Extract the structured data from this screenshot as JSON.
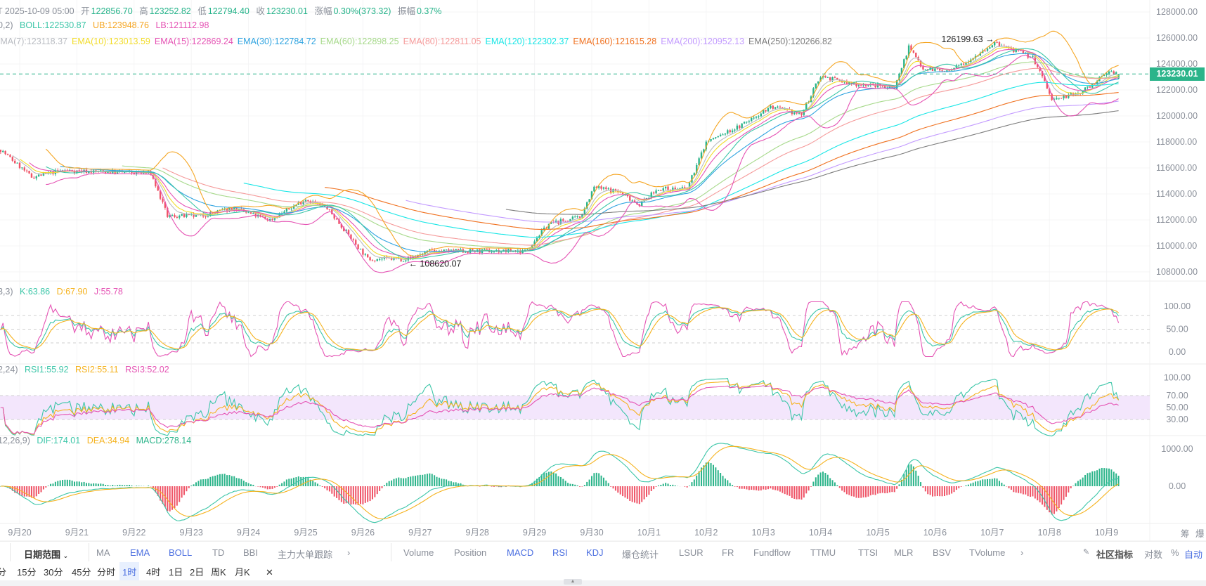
{
  "header": {
    "row1": {
      "prefix": "T 2025-10-09 05:00",
      "open_label": "开",
      "open": "122856.70",
      "high_label": "高",
      "high": "123252.82",
      "low_label": "低",
      "low": "122794.40",
      "close_label": "收",
      "close": "123230.01",
      "change_label": "涨幅",
      "change": "0.30%(373.32)",
      "amp_label": "振幅",
      "amp": "0.37%"
    },
    "boll": {
      "prefix": "0,2)",
      "mid": "BOLL:122530.87",
      "ub": "UB:123948.76",
      "lb": "LB:121112.98"
    },
    "ema": [
      {
        "text": "EMA(7):123118.37",
        "color": "#b9bcc2"
      },
      {
        "text": "EMA(10):123013.59",
        "color": "#f2dc2a"
      },
      {
        "text": "EMA(15):122869.24",
        "color": "#e553b4"
      },
      {
        "text": "EMA(30):122784.72",
        "color": "#2ea3e0"
      },
      {
        "text": "EMA(60):122898.25",
        "color": "#a6d98a"
      },
      {
        "text": "EMA(80):122811.05",
        "color": "#f59a9a"
      },
      {
        "text": "EMA(120):122302.37",
        "color": "#18e6e6"
      },
      {
        "text": "EMA(160):121615.28",
        "color": "#f0701e"
      },
      {
        "text": "EMA(200):120952.13",
        "color": "#c39bff"
      },
      {
        "text": "EMA(250):120266.82",
        "color": "#7d7d7d"
      }
    ],
    "kdj": {
      "prefix": "3,3)",
      "k": "K:63.86",
      "d": "D:67.90",
      "j": "J:55.78"
    },
    "rsi": {
      "prefix": "2,24)",
      "r1": "RSI1:55.92",
      "r2": "RSI2:55.11",
      "r3": "RSI3:52.02"
    },
    "macd": {
      "prefix": "12,26,9)",
      "dif": "DIF:174.01",
      "dea": "DEA:34.94",
      "macd": "MACD:278.14"
    }
  },
  "colors": {
    "up": "#2bb48a",
    "down": "#ef5467",
    "boll_mid": "#3cc6a8",
    "boll_ub": "#f5a623",
    "boll_lb": "#e553b4",
    "k": "#3cc6a8",
    "d": "#f5b21d",
    "j": "#e553b4",
    "rsi_band": "#f3e6fc"
  },
  "last_price": "123230.01",
  "annotations": {
    "high": "126199.63",
    "low": "108620.07"
  },
  "side_labels": {
    "chip": "筹",
    "liq": "爆"
  },
  "toolbar": {
    "date_range": "日期范围",
    "main_indicators": [
      "MA",
      "EMA",
      "BOLL",
      "TD",
      "BBI",
      "主力大单跟踪"
    ],
    "sub_indicators": [
      "Volume",
      "Position",
      "MACD",
      "RSI",
      "KDJ",
      "爆仓统计",
      "LSUR",
      "FR",
      "Fundflow",
      "TTMU",
      "TTSI",
      "MLR",
      "BSV",
      "TVolume"
    ],
    "community": "社区指标",
    "log": "对数",
    "percent": "%",
    "auto": "自动"
  },
  "timeframes": [
    "分",
    "15分",
    "30分",
    "45分",
    "分时",
    "1时",
    "4时",
    "1日",
    "2日",
    "周K",
    "月K"
  ],
  "timeframe_active": "1时",
  "chart_data": {
    "type": "candlestick",
    "interval": "1h",
    "x_tick_labels": [
      "9月20",
      "9月21",
      "9月22",
      "9月23",
      "9月24",
      "9月25",
      "9月26",
      "9月27",
      "9月28",
      "9月29",
      "9月30",
      "10月1",
      "10月2",
      "10月3",
      "10月4",
      "10月5",
      "10月6",
      "10月7",
      "10月8",
      "10月9"
    ],
    "price_ticks": [
      "128000.00",
      "126000.00",
      "124000.00",
      "122000.00",
      "120000.00",
      "118000.00",
      "116000.00",
      "114000.00",
      "112000.00",
      "110000.00",
      "108000.00"
    ],
    "ylim": [
      107000,
      128500
    ],
    "kdj_ticks": [
      "100.00",
      "50.00",
      "0.00"
    ],
    "rsi_ticks": [
      "100.00",
      "70.00",
      "50.00",
      "30.00"
    ],
    "macd_ticks": [
      "1000.00",
      "0.00"
    ],
    "candle_count": 470,
    "close_path_hours_price": [
      [
        0,
        117400
      ],
      [
        13,
        115300
      ],
      [
        26,
        115800
      ],
      [
        63,
        115600
      ],
      [
        70,
        112300
      ],
      [
        84,
        112300
      ],
      [
        97,
        112900
      ],
      [
        113,
        112000
      ],
      [
        128,
        113600
      ],
      [
        137,
        112900
      ],
      [
        154,
        109000
      ],
      [
        171,
        109000
      ],
      [
        180,
        109600
      ],
      [
        220,
        109600
      ],
      [
        230,
        111700
      ],
      [
        243,
        112200
      ],
      [
        249,
        114500
      ],
      [
        259,
        114200
      ],
      [
        268,
        113200
      ],
      [
        276,
        114400
      ],
      [
        288,
        114400
      ],
      [
        296,
        118000
      ],
      [
        310,
        119200
      ],
      [
        323,
        120700
      ],
      [
        336,
        120100
      ],
      [
        344,
        123100
      ],
      [
        356,
        122500
      ],
      [
        375,
        122200
      ],
      [
        381,
        125300
      ],
      [
        387,
        123700
      ],
      [
        398,
        123400
      ],
      [
        417,
        125600
      ],
      [
        433,
        124500
      ],
      [
        439,
        122200
      ],
      [
        441,
        121200
      ],
      [
        453,
        121800
      ],
      [
        466,
        123500
      ],
      [
        469,
        123230.01
      ]
    ],
    "ema_periods": [
      7,
      10,
      15,
      30,
      60,
      80,
      120,
      160,
      200,
      250
    ],
    "boll": {
      "period": 20,
      "k": 2
    },
    "kdj": [
      9,
      3,
      3
    ],
    "rsi_periods": [
      6,
      12,
      24
    ],
    "macd": [
      12,
      26,
      9
    ]
  }
}
